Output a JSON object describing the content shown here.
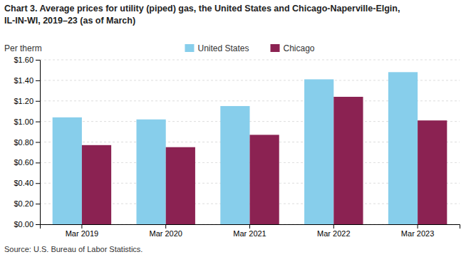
{
  "chart_data": {
    "type": "bar",
    "title": [
      "Chart 3. Average prices for utility (piped) gas, the United States and Chicago-Naperville-Elgin,",
      "IL-IN-WI, 2019–23 (as of March)"
    ],
    "y_label": "Per therm",
    "annotations": [
      "Source: U.S. Bureau of Labor Statistics."
    ],
    "categories": [
      "Mar 2019",
      "Mar 2020",
      "Mar 2021",
      "Mar 2022",
      "Mar 2023"
    ],
    "series": [
      {
        "name": "United States",
        "color": "#87CEEB",
        "values": [
          1.04,
          1.02,
          1.15,
          1.41,
          1.48
        ]
      },
      {
        "name": "Chicago",
        "color": "#8B2252",
        "values": [
          0.77,
          0.75,
          0.87,
          1.24,
          1.01
        ]
      }
    ],
    "ylim": [
      0,
      1.6
    ],
    "yticks": [
      {
        "value": 0.0,
        "label": "$0.00"
      },
      {
        "value": 0.2,
        "label": "$0.20"
      },
      {
        "value": 0.4,
        "label": "$0.40"
      },
      {
        "value": 0.6,
        "label": "$0.60"
      },
      {
        "value": 0.8,
        "label": "$0.80"
      },
      {
        "value": 1.0,
        "label": "$1.00"
      },
      {
        "value": 1.2,
        "label": "$1.20"
      },
      {
        "value": 1.4,
        "label": "$1.40"
      },
      {
        "value": 1.6,
        "label": "$1.60"
      }
    ],
    "grid": true,
    "legend": "top"
  }
}
